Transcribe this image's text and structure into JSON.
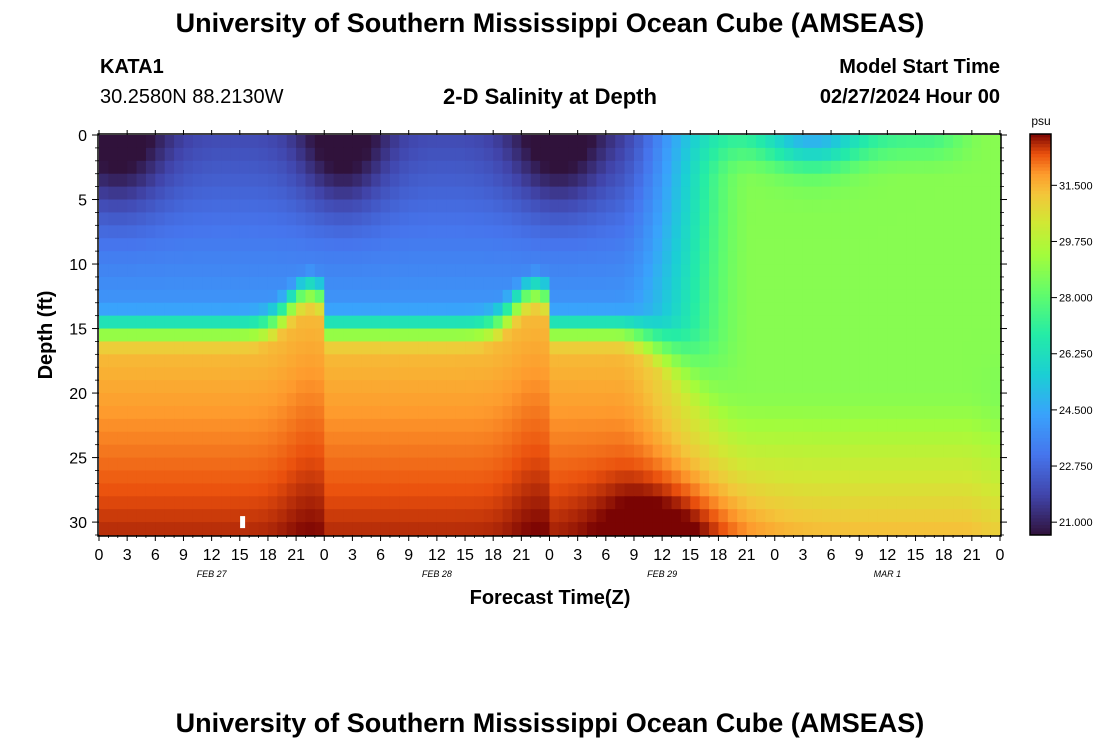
{
  "header": {
    "title": "University of Southern Mississippi Ocean Cube (AMSEAS)",
    "station_id": "KATA1",
    "station_coords": "30.2580N  88.2130W",
    "subtitle": "2-D Salinity at Depth",
    "model_start_label": "Model Start Time",
    "model_start_value": "02/27/2024 Hour 00"
  },
  "footer": {
    "title": "University of Southern Mississippi Ocean Cube (AMSEAS)"
  },
  "chart_data": {
    "type": "heatmap",
    "title": "2-D Salinity at Depth",
    "xlabel": "Forecast Time(Z)",
    "ylabel": "Depth (ft)",
    "x_hours_range": [
      0,
      96
    ],
    "y_range_ft": [
      0,
      31
    ],
    "x_tick_labels": [
      "0",
      "3",
      "6",
      "9",
      "12",
      "15",
      "18",
      "21",
      "0",
      "3",
      "6",
      "9",
      "12",
      "15",
      "18",
      "21",
      "0",
      "3",
      "6",
      "9",
      "12",
      "15",
      "18",
      "21",
      "0",
      "3",
      "6",
      "9",
      "12",
      "15",
      "18",
      "21",
      "0"
    ],
    "day_labels": [
      {
        "text": "FEB 27",
        "hour": 12
      },
      {
        "text": "FEB 28",
        "hour": 36
      },
      {
        "text": "FEB 29",
        "hour": 60
      },
      {
        "text": "MAR 1",
        "hour": 84
      }
    ],
    "y_ticks": [
      0,
      5,
      10,
      15,
      20,
      25,
      30
    ],
    "colorbar": {
      "unit": "psu",
      "min": 20.6,
      "max": 33.1,
      "tick_labels": [
        "31.500",
        "29.750",
        "28.000",
        "26.250",
        "24.500",
        "22.750",
        "21.000"
      ],
      "tick_values": [
        31.5,
        29.75,
        28.0,
        26.25,
        24.5,
        22.75,
        21.0
      ]
    },
    "marker": {
      "hour": 15.3,
      "depth_ft": 30
    }
  }
}
